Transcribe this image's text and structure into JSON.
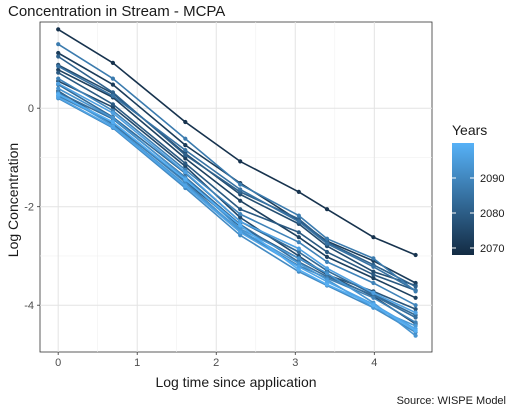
{
  "chart_data": {
    "type": "line",
    "title": "Concentration in Stream - MCPA",
    "xlabel": "Log time since application",
    "ylabel": "Log Concentration",
    "caption": "Source: WISPE Model",
    "xlim": [
      -0.23,
      4.73
    ],
    "ylim": [
      -4.95,
      1.75
    ],
    "x_ticks": [
      0,
      1,
      2,
      3,
      4
    ],
    "y_ticks": [
      -4,
      -2,
      0
    ],
    "grid": true,
    "legend": {
      "title": "Years",
      "position": "right",
      "type": "colorbar",
      "min": 2068,
      "max": 2100,
      "ticks": [
        2070,
        2080,
        2090
      ],
      "color_low": "#132B43",
      "color_high": "#56B1F7"
    },
    "x": [
      0,
      0.693,
      1.609,
      2.303,
      3.045,
      3.401,
      3.989,
      4.522
    ],
    "series": [
      {
        "year": 2070,
        "values": [
          1.6,
          0.92,
          -0.28,
          -1.08,
          -1.7,
          -2.05,
          -2.62,
          -2.98
        ]
      },
      {
        "year": 2072,
        "values": [
          1.12,
          0.48,
          -0.75,
          -1.52,
          -2.28,
          -2.7,
          -3.1,
          -3.55
        ]
      },
      {
        "year": 2073,
        "values": [
          0.78,
          0.22,
          -1.02,
          -1.88,
          -2.62,
          -3.02,
          -3.45,
          -3.85
        ]
      },
      {
        "year": 2075,
        "values": [
          0.55,
          0.02,
          -1.18,
          -2.22,
          -3.0,
          -3.38,
          -3.82,
          -4.38
        ]
      },
      {
        "year": 2076,
        "values": [
          0.88,
          0.3,
          -0.92,
          -1.75,
          -2.35,
          -2.8,
          -3.32,
          -3.6
        ]
      },
      {
        "year": 2078,
        "values": [
          0.35,
          -0.32,
          -1.48,
          -2.4,
          -3.05,
          -3.38,
          -3.72,
          -4.08
        ]
      },
      {
        "year": 2079,
        "values": [
          0.72,
          0.08,
          -1.12,
          -2.05,
          -2.52,
          -2.92,
          -3.38,
          -3.7
        ]
      },
      {
        "year": 2081,
        "values": [
          1.05,
          0.32,
          -0.95,
          -1.7,
          -2.25,
          -2.72,
          -3.18,
          -3.62
        ]
      },
      {
        "year": 2083,
        "values": [
          0.48,
          -0.18,
          -1.32,
          -2.3,
          -2.92,
          -3.3,
          -3.78,
          -4.2
        ]
      },
      {
        "year": 2084,
        "values": [
          0.32,
          -0.22,
          -1.4,
          -2.36,
          -3.12,
          -3.42,
          -3.8,
          -4.25
        ]
      },
      {
        "year": 2085,
        "values": [
          0.85,
          0.25,
          -0.85,
          -1.65,
          -2.3,
          -2.75,
          -3.22,
          -3.7
        ]
      },
      {
        "year": 2087,
        "values": [
          1.3,
          0.6,
          -0.62,
          -1.55,
          -2.18,
          -2.65,
          -3.05,
          -3.72
        ]
      },
      {
        "year": 2088,
        "values": [
          0.25,
          -0.3,
          -1.5,
          -2.5,
          -3.2,
          -3.45,
          -3.85,
          -4.35
        ]
      },
      {
        "year": 2089,
        "values": [
          0.6,
          -0.05,
          -1.25,
          -2.15,
          -2.72,
          -3.12,
          -3.55,
          -4.0
        ]
      },
      {
        "year": 2091,
        "values": [
          0.2,
          -0.4,
          -1.62,
          -2.58,
          -3.32,
          -3.6,
          -4.05,
          -4.55
        ]
      },
      {
        "year": 2093,
        "values": [
          0.4,
          -0.2,
          -1.42,
          -2.45,
          -3.05,
          -3.35,
          -3.95,
          -4.62
        ]
      },
      {
        "year": 2094,
        "values": [
          0.3,
          -0.35,
          -1.55,
          -2.48,
          -3.15,
          -3.48,
          -4.05,
          -4.42
        ]
      },
      {
        "year": 2096,
        "values": [
          0.5,
          -0.1,
          -1.3,
          -2.3,
          -2.85,
          -3.25,
          -3.75,
          -4.15
        ]
      },
      {
        "year": 2097,
        "values": [
          0.22,
          -0.38,
          -1.58,
          -2.52,
          -3.22,
          -3.52,
          -3.98,
          -4.48
        ]
      },
      {
        "year": 2099,
        "values": [
          0.28,
          -0.28,
          -1.45,
          -2.38,
          -3.28,
          -3.58,
          -4.0,
          -4.52
        ]
      }
    ]
  }
}
